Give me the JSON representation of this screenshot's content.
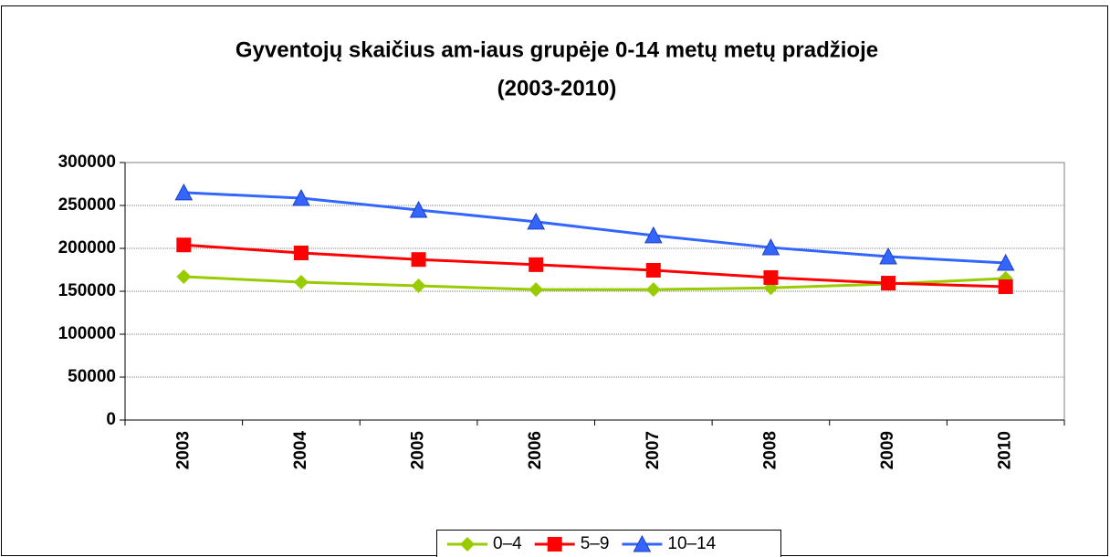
{
  "chart_data": {
    "type": "line",
    "title": [
      "Gyventojų skaičius am-iaus grupėje 0-14 metų metų pradžioje",
      "(2003-2010)"
    ],
    "categories": [
      "2003",
      "2004",
      "2005",
      "2006",
      "2007",
      "2008",
      "2009",
      "2010"
    ],
    "series": [
      {
        "name": "0–4",
        "color": "#99cc00",
        "marker": "diamond",
        "values": [
          167000,
          160600,
          156400,
          152000,
          152000,
          154000,
          158500,
          165000
        ]
      },
      {
        "name": "5–9",
        "color": "#ff0000",
        "marker": "square",
        "values": [
          204000,
          194700,
          187000,
          181000,
          174500,
          166000,
          159500,
          155300
        ]
      },
      {
        "name": "10–14",
        "color": "#3366ff",
        "marker": "triangle",
        "values": [
          265000,
          258500,
          244700,
          231000,
          215000,
          201000,
          190400,
          183000
        ]
      }
    ],
    "ylim": [
      0,
      300000
    ],
    "yticks": [
      0,
      50000,
      100000,
      150000,
      200000,
      250000,
      300000
    ],
    "grid": true,
    "legend": "bottom"
  }
}
